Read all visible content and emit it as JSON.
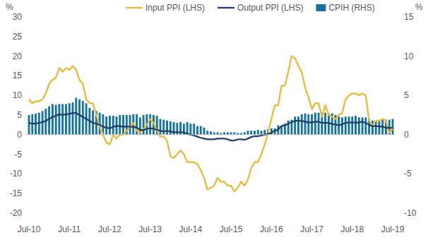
{
  "chart_data": {
    "type": "line",
    "ylabel": "%",
    "y2label": "%",
    "categories": [
      "Jul-10",
      null,
      null,
      null,
      null,
      null,
      null,
      null,
      null,
      null,
      null,
      null,
      "Jul-11",
      null,
      null,
      null,
      null,
      null,
      null,
      null,
      null,
      null,
      null,
      null,
      "Jul-12",
      null,
      null,
      null,
      null,
      null,
      null,
      null,
      null,
      null,
      null,
      null,
      "Jul-13",
      null,
      null,
      null,
      null,
      null,
      null,
      null,
      null,
      null,
      null,
      null,
      "Jul-14",
      null,
      null,
      null,
      null,
      null,
      null,
      null,
      null,
      null,
      null,
      null,
      "Jul-15",
      null,
      null,
      null,
      null,
      null,
      null,
      null,
      null,
      null,
      null,
      null,
      "Jul-16",
      null,
      null,
      null,
      null,
      null,
      null,
      null,
      null,
      null,
      null,
      null,
      "Jul-17",
      null,
      null,
      null,
      null,
      null,
      null,
      null,
      null,
      null,
      null,
      null,
      "Jul-18",
      null,
      null,
      null,
      null,
      null,
      null,
      null,
      null,
      null,
      null,
      null,
      "Jul-19"
    ],
    "series": [
      {
        "name": "Input PPI (LHS)",
        "type": "line",
        "color": "#e8b936",
        "values": [
          9,
          8,
          8.5,
          8.5,
          9,
          10.5,
          13,
          14,
          14.5,
          17,
          16,
          17,
          16.5,
          17.5,
          16.5,
          14,
          13,
          9,
          8,
          8,
          5,
          2,
          0,
          -2,
          -2.5,
          0,
          -1,
          0,
          0,
          1,
          2,
          3,
          1,
          0.5,
          1.5,
          2.5,
          4,
          3,
          1,
          -0.5,
          -0.5,
          -1.5,
          -5.5,
          -6,
          -5,
          -4,
          -5,
          -7,
          -7,
          -7,
          -7.5,
          -9,
          -11,
          -14,
          -13.5,
          -13,
          -11,
          -12,
          -12,
          -13,
          -13,
          -14.5,
          -13.5,
          -12,
          -13,
          -11.5,
          -8.5,
          -7,
          -7,
          -5,
          -2.5,
          0.5,
          4,
          7.5,
          7.5,
          12.5,
          12.5,
          16,
          20,
          19.5,
          17.5,
          16,
          12,
          9.5,
          6.5,
          8,
          8,
          4.5,
          7.5,
          5,
          4.5,
          4,
          5,
          5.5,
          9,
          10,
          10.5,
          10.5,
          10,
          10.5,
          10,
          3.5,
          2.5,
          3.5,
          3.5,
          4,
          3.5,
          0.5,
          1.5
        ]
      },
      {
        "name": "Output PPI (LHS)",
        "type": "line",
        "color": "#1f3d66",
        "values": [
          3,
          2.8,
          2.8,
          3,
          3.2,
          3.5,
          4,
          4.5,
          4.8,
          5.2,
          5,
          5.2,
          5.3,
          5.5,
          5.5,
          5,
          4.5,
          4,
          3.5,
          3,
          2.8,
          2.5,
          2,
          1.8,
          1.6,
          2,
          2.2,
          2.2,
          2,
          2.1,
          2,
          2,
          1.8,
          1.2,
          1.2,
          1.5,
          1.6,
          1.5,
          1.2,
          1,
          0.8,
          1,
          0.8,
          0.6,
          0.6,
          0.6,
          0.6,
          0.2,
          0,
          -0.2,
          -0.5,
          -0.8,
          -1,
          -1.2,
          -1.2,
          -1.2,
          -1,
          -1,
          -1,
          -1.2,
          -1.5,
          -1.5,
          -1.2,
          -1.2,
          -1.3,
          -1,
          -0.6,
          -0.4,
          -0.4,
          -0.2,
          0,
          0.2,
          0.5,
          1,
          1.3,
          2.2,
          2.4,
          2.8,
          3.2,
          3.5,
          3.6,
          3.5,
          3.3,
          3.1,
          3.1,
          3.3,
          3.3,
          3,
          3,
          3,
          2.7,
          2.6,
          2.4,
          2.6,
          3,
          3.1,
          3.1,
          3.1,
          3.1,
          3.3,
          3,
          2.5,
          2.2,
          2.2,
          2.1,
          2,
          1.8,
          1.7,
          1.8
        ]
      },
      {
        "name": "CPIH (RHS)",
        "type": "bar",
        "axis": "y2",
        "color": "#1372a0",
        "values": [
          2.5,
          2.6,
          2.7,
          2.8,
          3.0,
          3.3,
          3.6,
          3.9,
          3.8,
          3.9,
          3.9,
          3.9,
          4.0,
          4.1,
          4.7,
          4.5,
          4.3,
          4.0,
          3.4,
          3.1,
          3.0,
          2.8,
          2.6,
          2.3,
          2.4,
          2.4,
          2.3,
          2.5,
          2.5,
          2.5,
          2.5,
          2.6,
          2.6,
          2.2,
          2.5,
          2.6,
          2.6,
          2.5,
          2.4,
          2.0,
          1.9,
          1.8,
          1.7,
          1.6,
          1.5,
          1.6,
          1.4,
          1.6,
          1.4,
          1.4,
          1.1,
          1.1,
          0.9,
          0.5,
          0.4,
          0.3,
          0.3,
          0.2,
          0.3,
          0.3,
          0.3,
          0.3,
          0.2,
          0.2,
          0.3,
          0.5,
          0.5,
          0.5,
          0.6,
          0.5,
          0.6,
          0.7,
          0.8,
          0.8,
          1.2,
          1.1,
          1.4,
          1.8,
          1.9,
          2.3,
          2.3,
          2.6,
          2.7,
          2.6,
          2.6,
          2.8,
          2.8,
          2.8,
          2.8,
          2.7,
          2.7,
          2.5,
          2.3,
          2.2,
          2.3,
          2.3,
          2.3,
          2.4,
          2.2,
          2.2,
          2.2,
          2.0,
          1.8,
          1.8,
          1.8,
          2.0,
          1.9,
          1.9,
          2.0
        ]
      }
    ],
    "ylim": [
      -20,
      30
    ],
    "yticks": [
      -20,
      -15,
      -10,
      -5,
      0,
      5,
      10,
      15,
      20,
      25,
      30
    ],
    "y2lim": [
      -10,
      15
    ],
    "y2ticks": [
      -10,
      -5,
      0,
      5,
      10,
      15
    ],
    "grid": false,
    "legend": "top"
  }
}
